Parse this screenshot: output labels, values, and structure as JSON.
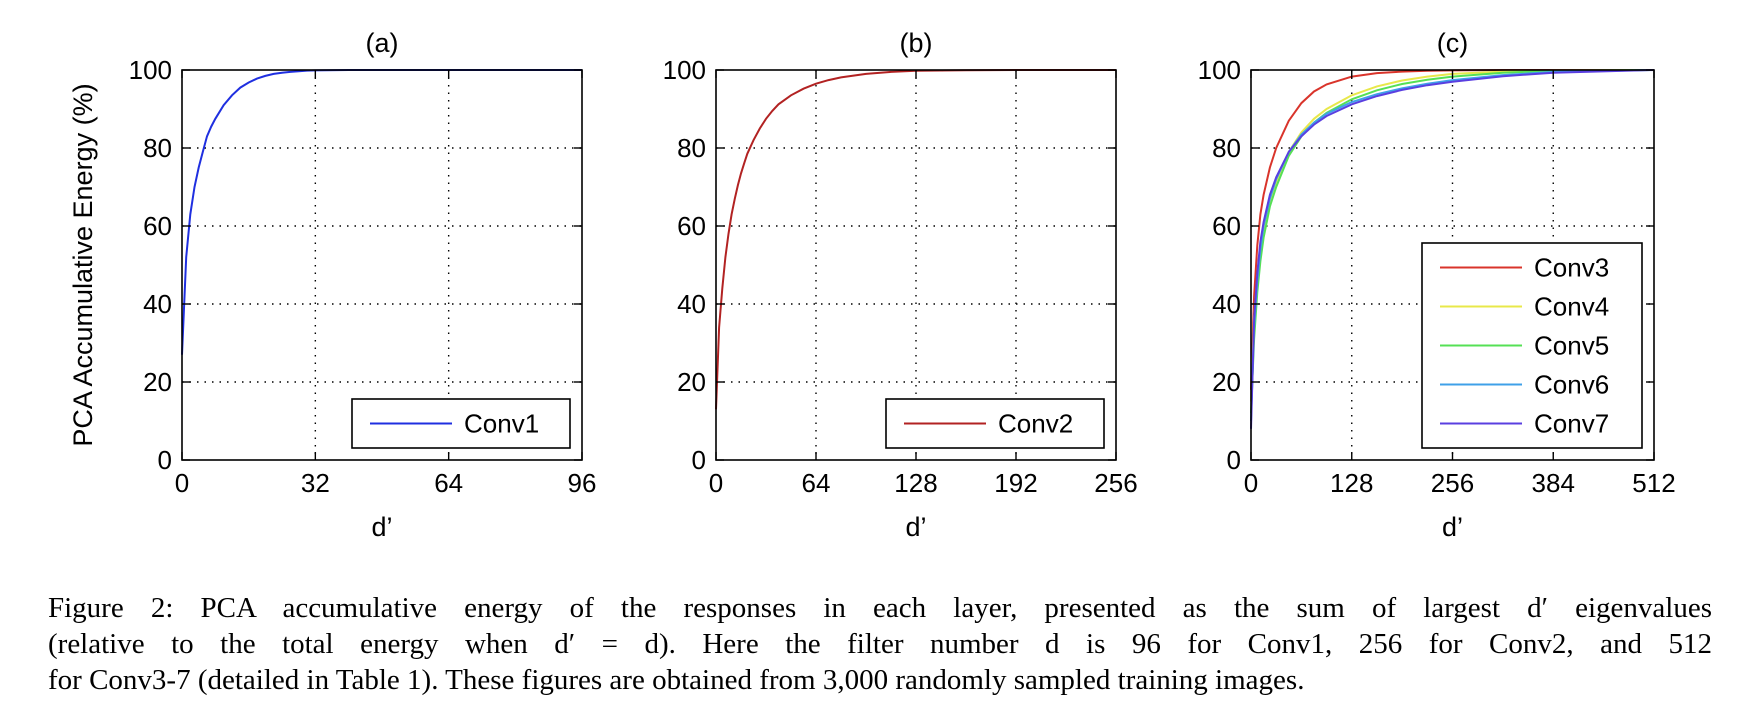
{
  "chart_data": [
    {
      "type": "line",
      "title": "(a)",
      "xlabel": "d’",
      "ylabel": "PCA Accumulative Energy (%)",
      "xlim": [
        0,
        96
      ],
      "ylim": [
        0,
        100
      ],
      "xticks": [
        0,
        32,
        64,
        96
      ],
      "yticks": [
        0,
        20,
        40,
        60,
        80,
        100
      ],
      "grid": true,
      "legend_position": "bottom-right",
      "series": [
        {
          "name": "Conv1",
          "color": "#1f2fe0",
          "x": [
            0,
            1,
            2,
            3,
            4,
            5,
            6,
            7,
            8,
            10,
            12,
            14,
            16,
            18,
            20,
            22,
            24,
            26,
            28,
            30,
            32,
            40,
            48,
            64,
            96
          ],
          "y": [
            27,
            52,
            63,
            70,
            75,
            79,
            83,
            85.5,
            87.5,
            91,
            93.5,
            95.5,
            96.8,
            97.8,
            98.5,
            99,
            99.3,
            99.5,
            99.7,
            99.85,
            99.9,
            100,
            100,
            100,
            100
          ]
        }
      ]
    },
    {
      "type": "line",
      "title": "(b)",
      "xlabel": "d’",
      "ylabel": "",
      "xlim": [
        0,
        256
      ],
      "ylim": [
        0,
        100
      ],
      "xticks": [
        0,
        64,
        128,
        192,
        256
      ],
      "yticks": [
        0,
        20,
        40,
        60,
        80,
        100
      ],
      "grid": true,
      "legend_position": "bottom-right",
      "series": [
        {
          "name": "Conv2",
          "color": "#b22222",
          "x": [
            0,
            2,
            4,
            6,
            8,
            10,
            12,
            14,
            16,
            18,
            20,
            24,
            28,
            32,
            36,
            40,
            48,
            56,
            64,
            72,
            80,
            96,
            112,
            128,
            160,
            192,
            256
          ],
          "y": [
            13,
            34,
            44,
            52,
            58,
            63,
            67,
            70.5,
            73.5,
            76,
            78.5,
            82,
            85,
            87.5,
            89.5,
            91.2,
            93.5,
            95.2,
            96.5,
            97.4,
            98.1,
            99,
            99.5,
            99.8,
            99.95,
            100,
            100
          ]
        }
      ]
    },
    {
      "type": "line",
      "title": "(c)",
      "xlabel": "d’",
      "ylabel": "",
      "xlim": [
        0,
        512
      ],
      "ylim": [
        0,
        100
      ],
      "xticks": [
        0,
        128,
        256,
        384,
        512
      ],
      "yticks": [
        0,
        20,
        40,
        60,
        80,
        100
      ],
      "grid": true,
      "legend_position": "center-right",
      "series": [
        {
          "name": "Conv3",
          "color": "#d9342b",
          "x": [
            0,
            4,
            8,
            12,
            16,
            24,
            32,
            48,
            64,
            80,
            96,
            128,
            160,
            192,
            224,
            256,
            320,
            384,
            512
          ],
          "y": [
            18,
            42,
            55,
            63,
            68,
            75,
            80,
            87,
            91.5,
            94.5,
            96.3,
            98.3,
            99.2,
            99.6,
            99.8,
            99.9,
            100,
            100,
            100
          ]
        },
        {
          "name": "Conv4",
          "color": "#e8e84a",
          "x": [
            0,
            4,
            8,
            12,
            16,
            24,
            32,
            48,
            64,
            80,
            96,
            128,
            160,
            192,
            224,
            256,
            320,
            384,
            512
          ],
          "y": [
            15,
            36,
            47,
            54,
            59,
            66,
            71,
            79,
            84,
            87.5,
            90,
            93.5,
            95.8,
            97.3,
            98.3,
            99,
            99.6,
            99.9,
            100
          ]
        },
        {
          "name": "Conv5",
          "color": "#55e055",
          "x": [
            0,
            4,
            8,
            12,
            16,
            24,
            32,
            48,
            64,
            80,
            96,
            128,
            160,
            192,
            224,
            256,
            320,
            384,
            512
          ],
          "y": [
            12,
            31,
            43,
            51,
            57,
            65,
            70,
            78,
            83,
            86.5,
            89,
            92.5,
            94.8,
            96.4,
            97.5,
            98.3,
            99.3,
            99.8,
            100
          ]
        },
        {
          "name": "Conv6",
          "color": "#3fa0e8",
          "x": [
            0,
            4,
            8,
            12,
            16,
            24,
            32,
            48,
            64,
            80,
            96,
            128,
            160,
            192,
            224,
            256,
            320,
            384,
            512
          ],
          "y": [
            10,
            34,
            46,
            54,
            60,
            67,
            72,
            79,
            83.5,
            86.5,
            88.8,
            91.8,
            93.8,
            95.3,
            96.5,
            97.4,
            98.7,
            99.5,
            100
          ]
        },
        {
          "name": "Conv7",
          "color": "#5a3fe0",
          "x": [
            0,
            4,
            8,
            12,
            16,
            24,
            32,
            48,
            64,
            80,
            96,
            128,
            160,
            192,
            224,
            256,
            320,
            384,
            512
          ],
          "y": [
            8,
            36,
            48,
            56,
            61,
            68,
            72.5,
            79,
            83,
            86,
            88.2,
            91.2,
            93.3,
            94.9,
            96.1,
            97,
            98.4,
            99.3,
            100
          ]
        }
      ]
    }
  ],
  "caption": {
    "lines": [
      "Figure 2: PCA accumulative energy of the responses in each layer, presented as the sum of largest d′ eigenvalues",
      "(relative to the total energy when d′ = d). Here the filter number d is 96 for Conv1, 256 for Conv2, and 512",
      "for Conv3-7 (detailed in Table 1). These figures are obtained from 3,000 randomly sampled training images."
    ]
  }
}
